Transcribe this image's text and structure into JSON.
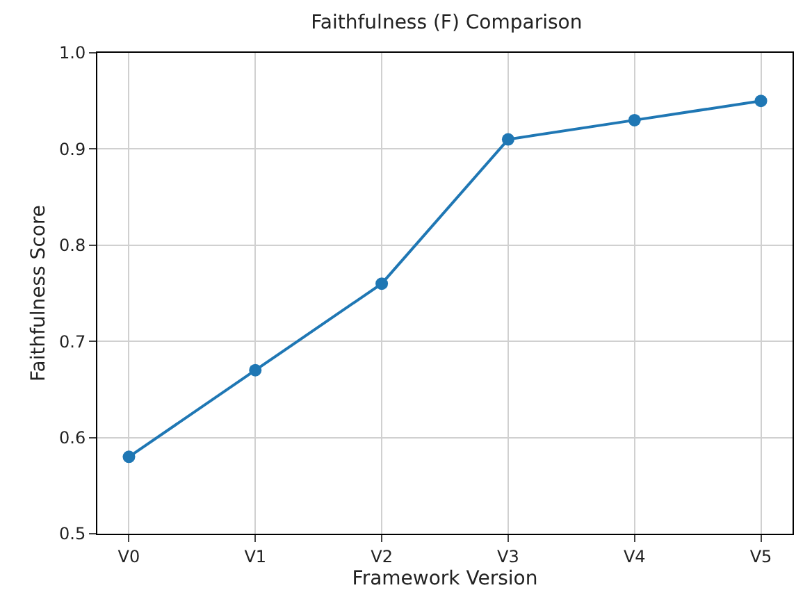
{
  "chart_data": {
    "type": "line",
    "title": "Faithfulness (F) Comparison",
    "xlabel": "Framework Version",
    "ylabel": "Faithfulness Score",
    "categories": [
      "V0",
      "V1",
      "V2",
      "V3",
      "V4",
      "V5"
    ],
    "series": [
      {
        "color": "#1f77b4",
        "values": [
          0.58,
          0.67,
          0.76,
          0.91,
          0.93,
          0.95
        ]
      }
    ],
    "ylim": [
      0.5,
      1.0
    ],
    "yticks": [
      {
        "value": 0.5,
        "label": "0.5"
      },
      {
        "value": 0.6,
        "label": "0.6"
      },
      {
        "value": 0.7,
        "label": "0.7"
      },
      {
        "value": 0.8,
        "label": "0.8"
      },
      {
        "value": 0.9,
        "label": "0.9"
      },
      {
        "value": 1.0,
        "label": "1.0"
      }
    ],
    "grid": true,
    "marker": "circle",
    "line_style": "solid"
  }
}
